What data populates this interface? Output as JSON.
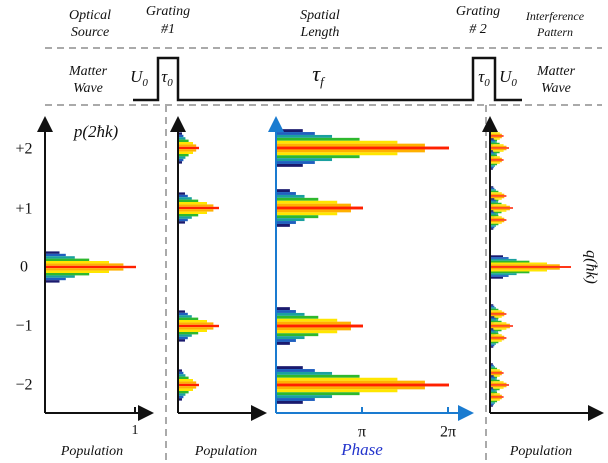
{
  "header": {
    "optical_source": [
      "Optical",
      "Source"
    ],
    "grating_1": [
      "Grating",
      "#1"
    ],
    "spatial_length": [
      "Spatial",
      "Length"
    ],
    "grating_2": [
      "Grating",
      "# 2"
    ],
    "interference_pattern": [
      "Interference",
      "Pattern"
    ]
  },
  "matter_wave": {
    "left_label": [
      "Matter",
      "Wave"
    ],
    "right_label": [
      "Matter",
      "Wave"
    ],
    "u0_left": {
      "base": "U",
      "sub": "0"
    },
    "tau0_left": {
      "base": "τ",
      "sub": "0"
    },
    "tau_f": {
      "base": "τ",
      "sub": "f"
    },
    "tau0_right": {
      "base": "τ",
      "sub": "0"
    },
    "u0_right": {
      "base": "U",
      "sub": "0"
    }
  },
  "axes": {
    "momentum_label": "p(2ħk)",
    "orders": [
      "+2",
      "+1",
      "0",
      "−1",
      "−2"
    ],
    "population_tick": "1",
    "phase_ticks": [
      "π",
      "2π"
    ],
    "x_labels": [
      "Population",
      "Population",
      "Phase",
      "Population"
    ],
    "q_label": "q(ħk)"
  }
}
